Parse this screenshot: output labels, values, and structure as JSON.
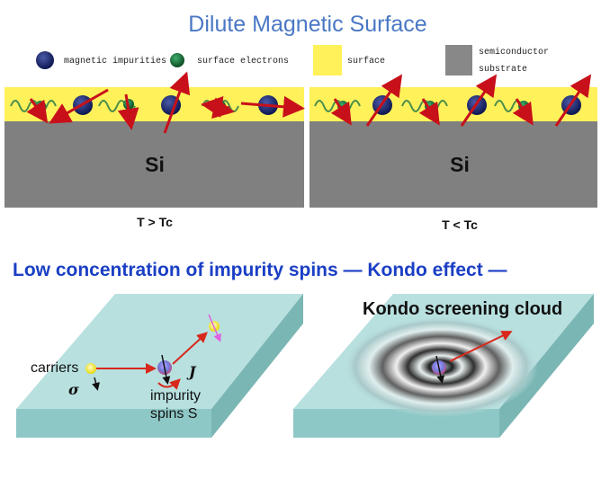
{
  "title": "Dilute Magnetic Surface",
  "legend": {
    "magnetic_impurities": "magnetic impurities",
    "surface_electrons": "surface electrons",
    "surface": "surface",
    "semiconductor_line1": "semiconductor",
    "semiconductor_line2": "substrate"
  },
  "panels": {
    "left": {
      "substrate_label": "Si",
      "condition": "T > Tc"
    },
    "right": {
      "substrate_label": "Si",
      "condition": "T < Tc"
    }
  },
  "kondo": {
    "heading": "Low concentration of impurity spins — Kondo effect —",
    "carriers_label": "carriers",
    "sigma_symbol": "σ",
    "coupling_symbol": "J",
    "impurity_line1": "impurity",
    "impurity_line2": "spins S",
    "cloud_label": "Kondo screening cloud"
  },
  "colors": {
    "title": "#4a78c4",
    "surface_layer": "#fff15a",
    "substrate": "#808080",
    "impurity": "#14205f",
    "electron": "#1a6e3a",
    "spin_arrow": "#c8101a",
    "section_heading": "#1a3fc4",
    "slab": "#b8e0df"
  }
}
